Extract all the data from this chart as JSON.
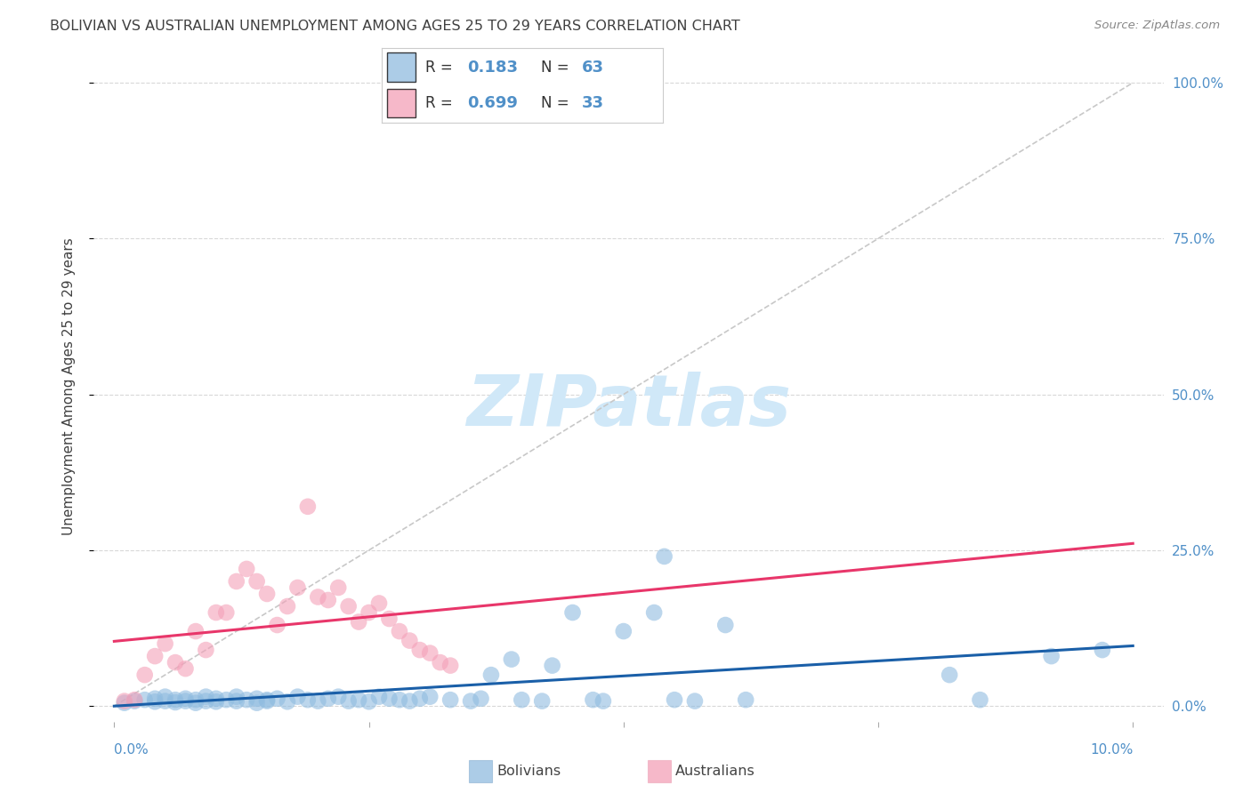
{
  "title": "BOLIVIAN VS AUSTRALIAN UNEMPLOYMENT AMONG AGES 25 TO 29 YEARS CORRELATION CHART",
  "source": "Source: ZipAtlas.com",
  "ylabel": "Unemployment Among Ages 25 to 29 years",
  "ytick_labels": [
    "0.0%",
    "25.0%",
    "50.0%",
    "75.0%",
    "100.0%"
  ],
  "ytick_values": [
    0.0,
    0.25,
    0.5,
    0.75,
    1.0
  ],
  "bolivian_color": "#90bce0",
  "australian_color": "#f4a0b8",
  "bolivian_trend_color": "#1a5fa8",
  "australian_trend_color": "#e8366a",
  "diagonal_color": "#c8c8c8",
  "background_color": "#ffffff",
  "grid_color": "#d8d8d8",
  "title_color": "#404040",
  "right_axis_label_color": "#5090c8",
  "legend_r1": "0.183",
  "legend_n1": "63",
  "legend_r2": "0.699",
  "legend_n2": "33",
  "bolivians_scatter": [
    [
      0.001,
      0.005
    ],
    [
      0.002,
      0.008
    ],
    [
      0.003,
      0.01
    ],
    [
      0.004,
      0.007
    ],
    [
      0.004,
      0.012
    ],
    [
      0.005,
      0.008
    ],
    [
      0.005,
      0.015
    ],
    [
      0.006,
      0.006
    ],
    [
      0.006,
      0.01
    ],
    [
      0.007,
      0.008
    ],
    [
      0.007,
      0.012
    ],
    [
      0.008,
      0.005
    ],
    [
      0.008,
      0.01
    ],
    [
      0.009,
      0.008
    ],
    [
      0.009,
      0.015
    ],
    [
      0.01,
      0.007
    ],
    [
      0.01,
      0.012
    ],
    [
      0.011,
      0.01
    ],
    [
      0.012,
      0.008
    ],
    [
      0.012,
      0.015
    ],
    [
      0.013,
      0.01
    ],
    [
      0.014,
      0.005
    ],
    [
      0.014,
      0.012
    ],
    [
      0.015,
      0.008
    ],
    [
      0.015,
      0.01
    ],
    [
      0.016,
      0.012
    ],
    [
      0.017,
      0.007
    ],
    [
      0.018,
      0.015
    ],
    [
      0.019,
      0.01
    ],
    [
      0.02,
      0.008
    ],
    [
      0.021,
      0.012
    ],
    [
      0.022,
      0.015
    ],
    [
      0.023,
      0.008
    ],
    [
      0.024,
      0.01
    ],
    [
      0.025,
      0.007
    ],
    [
      0.026,
      0.015
    ],
    [
      0.027,
      0.012
    ],
    [
      0.028,
      0.01
    ],
    [
      0.029,
      0.008
    ],
    [
      0.03,
      0.012
    ],
    [
      0.031,
      0.015
    ],
    [
      0.033,
      0.01
    ],
    [
      0.035,
      0.008
    ],
    [
      0.036,
      0.012
    ],
    [
      0.037,
      0.05
    ],
    [
      0.039,
      0.075
    ],
    [
      0.04,
      0.01
    ],
    [
      0.042,
      0.008
    ],
    [
      0.043,
      0.065
    ],
    [
      0.045,
      0.15
    ],
    [
      0.047,
      0.01
    ],
    [
      0.048,
      0.008
    ],
    [
      0.05,
      0.12
    ],
    [
      0.053,
      0.15
    ],
    [
      0.054,
      0.24
    ],
    [
      0.055,
      0.01
    ],
    [
      0.057,
      0.008
    ],
    [
      0.06,
      0.13
    ],
    [
      0.062,
      0.01
    ],
    [
      0.082,
      0.05
    ],
    [
      0.085,
      0.01
    ],
    [
      0.092,
      0.08
    ],
    [
      0.097,
      0.09
    ]
  ],
  "australian_scatter": [
    [
      0.001,
      0.008
    ],
    [
      0.002,
      0.01
    ],
    [
      0.003,
      0.05
    ],
    [
      0.004,
      0.08
    ],
    [
      0.005,
      0.1
    ],
    [
      0.006,
      0.07
    ],
    [
      0.007,
      0.06
    ],
    [
      0.008,
      0.12
    ],
    [
      0.009,
      0.09
    ],
    [
      0.01,
      0.15
    ],
    [
      0.011,
      0.15
    ],
    [
      0.012,
      0.2
    ],
    [
      0.013,
      0.22
    ],
    [
      0.014,
      0.2
    ],
    [
      0.015,
      0.18
    ],
    [
      0.016,
      0.13
    ],
    [
      0.017,
      0.16
    ],
    [
      0.018,
      0.19
    ],
    [
      0.019,
      0.32
    ],
    [
      0.02,
      0.175
    ],
    [
      0.021,
      0.17
    ],
    [
      0.022,
      0.19
    ],
    [
      0.023,
      0.16
    ],
    [
      0.024,
      0.135
    ],
    [
      0.025,
      0.15
    ],
    [
      0.026,
      0.165
    ],
    [
      0.027,
      0.14
    ],
    [
      0.028,
      0.12
    ],
    [
      0.029,
      0.105
    ],
    [
      0.03,
      0.09
    ],
    [
      0.031,
      0.085
    ],
    [
      0.032,
      0.07
    ],
    [
      0.033,
      0.065
    ]
  ],
  "xmin": -0.002,
  "xmax": 0.103,
  "ymin": -0.025,
  "ymax": 1.05,
  "watermark_text": "ZIPatlas",
  "watermark_color": "#d0e8f8"
}
